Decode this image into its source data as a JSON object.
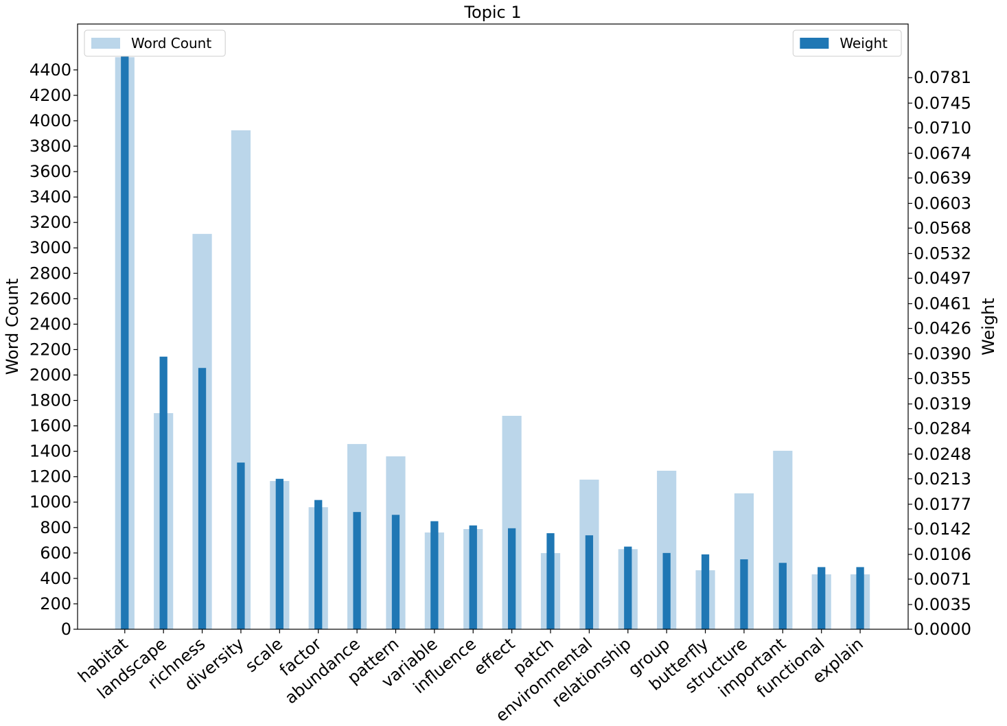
{
  "chart_data": {
    "type": "bar",
    "title": "Topic 1",
    "categories": [
      "habitat",
      "landscape",
      "richness",
      "diversity",
      "scale",
      "factor",
      "abundance",
      "pattern",
      "variable",
      "influence",
      "effect",
      "patch",
      "environmental",
      "relationship",
      "group",
      "butterfly",
      "structure",
      "important",
      "functional",
      "explain"
    ],
    "ylabel": "Word Count",
    "y2label": "Weight",
    "ylim": [
      0,
      4761
    ],
    "yticks": [
      0,
      200,
      400,
      600,
      800,
      1000,
      1200,
      1400,
      1600,
      1800,
      2000,
      2200,
      2400,
      2600,
      2800,
      3000,
      3200,
      3400,
      3600,
      3800,
      4000,
      4200,
      4400
    ],
    "y2lim": [
      0,
      0.0857
    ],
    "y2ticks": [
      {
        "value": 0,
        "label": "0.0000"
      },
      {
        "value": 0.0035,
        "label": "0.0035"
      },
      {
        "value": 0.0071,
        "label": "0.0071"
      },
      {
        "value": 0.0106,
        "label": "0.0106"
      },
      {
        "value": 0.0142,
        "label": "0.0142"
      },
      {
        "value": 0.0177,
        "label": "0.0177"
      },
      {
        "value": 0.0213,
        "label": "0.0213"
      },
      {
        "value": 0.0248,
        "label": "0.0248"
      },
      {
        "value": 0.0284,
        "label": "0.0284"
      },
      {
        "value": 0.0319,
        "label": "0.0319"
      },
      {
        "value": 0.0355,
        "label": "0.0355"
      },
      {
        "value": 0.039,
        "label": "0.0390"
      },
      {
        "value": 0.0426,
        "label": "0.0426"
      },
      {
        "value": 0.0461,
        "label": "0.0461"
      },
      {
        "value": 0.0497,
        "label": "0.0497"
      },
      {
        "value": 0.0532,
        "label": "0.0532"
      },
      {
        "value": 0.0568,
        "label": "0.0568"
      },
      {
        "value": 0.0603,
        "label": "0.0603"
      },
      {
        "value": 0.0639,
        "label": "0.0639"
      },
      {
        "value": 0.0674,
        "label": "0.0674"
      },
      {
        "value": 0.071,
        "label": "0.0710"
      },
      {
        "value": 0.0745,
        "label": "0.0745"
      },
      {
        "value": 0.0781,
        "label": "0.0781"
      }
    ],
    "series": [
      {
        "name": "Word Count",
        "color": "#bbd6ea",
        "legend": "upper left",
        "values": [
          4500,
          1700,
          3110,
          3925,
          1166,
          960,
          1457,
          1360,
          761,
          788,
          1679,
          599,
          1177,
          630,
          1247,
          464,
          1069,
          1404,
          432,
          432
        ]
      },
      {
        "name": "Weight",
        "color": "#1f77b4",
        "axis": "y2",
        "legend": "upper right",
        "values": [
          0.0817,
          0.0386,
          0.037,
          0.0236,
          0.0213,
          0.0183,
          0.0166,
          0.0162,
          0.0153,
          0.0147,
          0.0143,
          0.0136,
          0.0133,
          0.0117,
          0.0108,
          0.0106,
          0.0099,
          0.0094,
          0.0088,
          0.0088
        ]
      }
    ]
  }
}
